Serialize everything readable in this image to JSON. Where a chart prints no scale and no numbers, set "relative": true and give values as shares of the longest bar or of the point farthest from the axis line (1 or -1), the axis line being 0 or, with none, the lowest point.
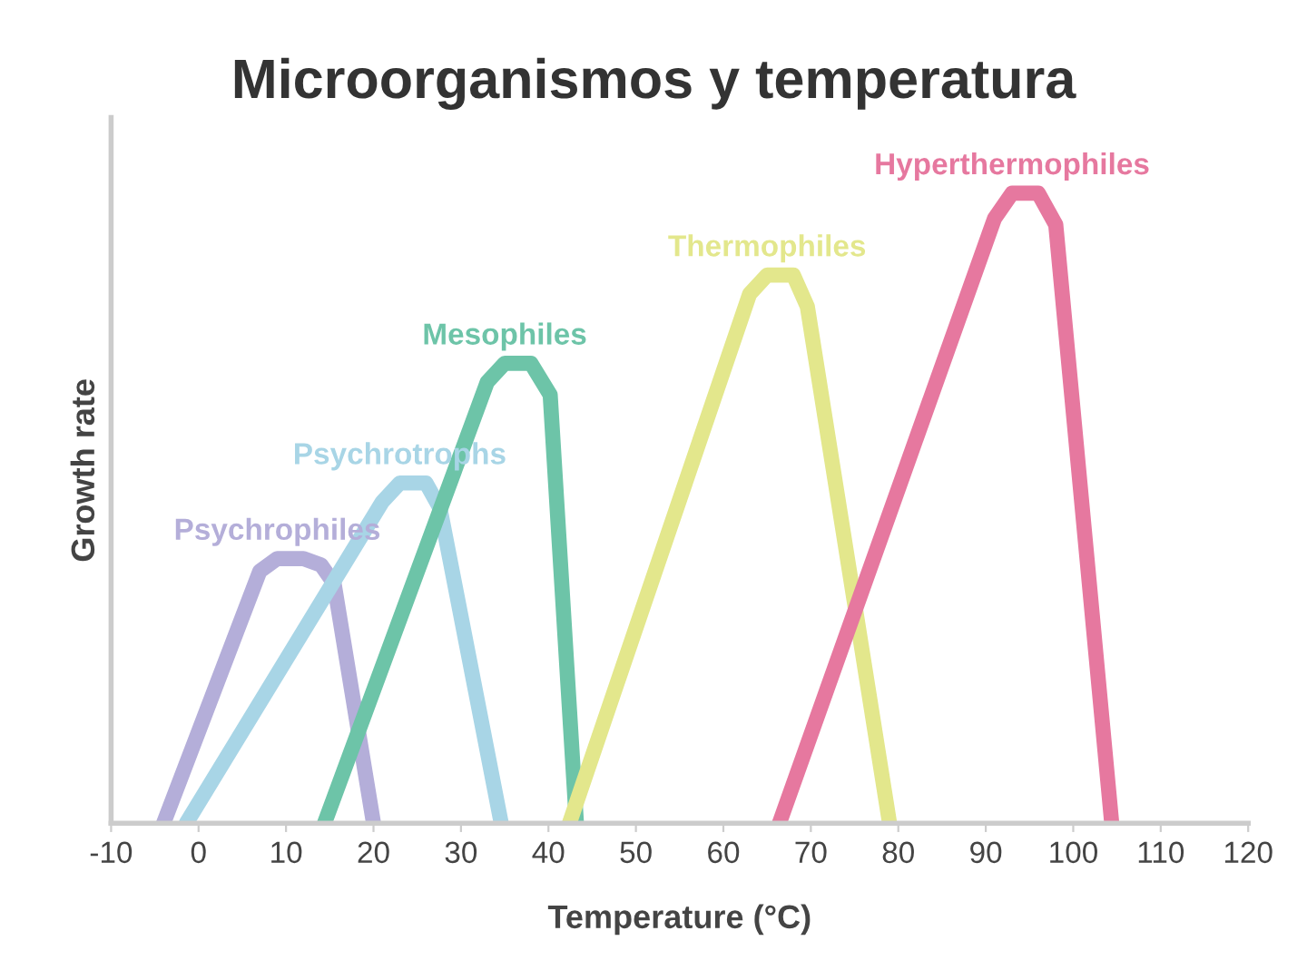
{
  "chart_data": {
    "type": "line",
    "title": "Microorganismos y temperatura",
    "xlabel": "Temperature (°C)",
    "ylabel": "Growth rate",
    "relative": true,
    "xlim": [
      -10,
      120
    ],
    "xticks": [
      -10,
      0,
      10,
      20,
      30,
      40,
      50,
      60,
      70,
      80,
      90,
      100,
      110,
      120
    ],
    "grid": false,
    "legend": false,
    "marker": "none",
    "line_style": "solid",
    "series": [
      {
        "name": "Psychrophiles",
        "color": "#b4aed9",
        "x": [
          -4,
          7,
          9,
          12,
          14,
          15.5,
          20
        ],
        "values": [
          0,
          0.4,
          0.42,
          0.42,
          0.41,
          0.38,
          0
        ]
      },
      {
        "name": "Psychrotrophs",
        "color": "#a8d5e6",
        "x": [
          -1.4,
          21,
          23,
          26,
          27.6,
          34.6
        ],
        "values": [
          0,
          0.51,
          0.54,
          0.54,
          0.5,
          0
        ]
      },
      {
        "name": "Mesophiles",
        "color": "#6dc4a8",
        "x": [
          14.4,
          33,
          35,
          38,
          40.2,
          43.2
        ],
        "values": [
          0,
          0.7,
          0.73,
          0.73,
          0.68,
          0
        ]
      },
      {
        "name": "Thermophiles",
        "color": "#e3e78c",
        "x": [
          42.4,
          63,
          65,
          68,
          69.6,
          79
        ],
        "values": [
          0,
          0.84,
          0.87,
          0.87,
          0.82,
          0
        ]
      },
      {
        "name": "Hyperthermophiles",
        "color": "#e6789f",
        "x": [
          66.4,
          91,
          93,
          96,
          98,
          104.4
        ],
        "values": [
          0,
          0.96,
          1,
          1,
          0.95,
          0
        ]
      }
    ]
  }
}
